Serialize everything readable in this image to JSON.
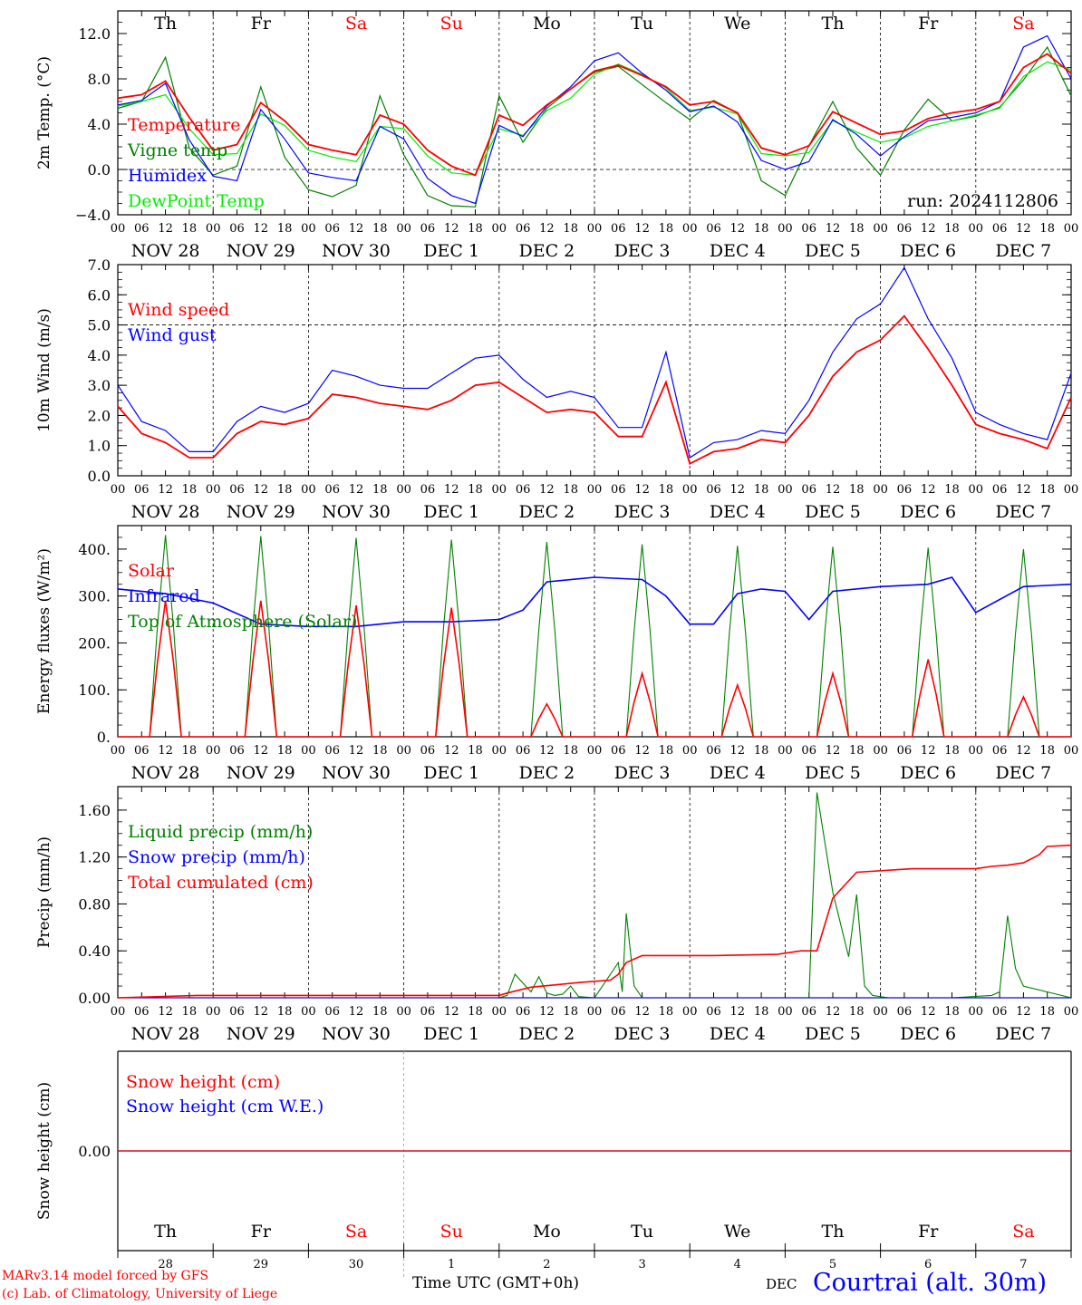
{
  "meta": {
    "run_label": "run: 2024112806",
    "footer_model": "MARv3.14 model forced by GFS",
    "footer_copyright": "(c) Lab. of Climatology, University of Liege",
    "footer_time": "Time UTC (GMT+0h)",
    "footer_month": "DEC",
    "footer_station": "Courtrai (alt. 30m)"
  },
  "colors": {
    "red": "#ff0000",
    "green": "#008000",
    "blue": "#0000ff",
    "light_green": "#00ee00",
    "weekend": "#ff0000",
    "weekday": "#000000"
  },
  "days": {
    "weekday_labels": [
      "Th",
      "Fr",
      "Sa",
      "Su",
      "Mo",
      "Tu",
      "We",
      "Th",
      "Fr",
      "Sa"
    ],
    "weekend_flags": [
      false,
      false,
      true,
      true,
      false,
      false,
      false,
      false,
      false,
      true
    ],
    "date_labels": [
      "NOV 28",
      "NOV 29",
      "NOV 30",
      "DEC  1",
      "DEC  2",
      "DEC  3",
      "DEC  4",
      "DEC  5",
      "DEC  6",
      "DEC  7"
    ],
    "day_numbers": [
      "28",
      "29",
      "30",
      "1",
      "2",
      "3",
      "4",
      "5",
      "6",
      "7"
    ],
    "hour_ticks": [
      "00",
      "06",
      "12",
      "18"
    ],
    "hour_tick_end": "00"
  },
  "chart_data": [
    {
      "type": "line",
      "ylabel": "2m Temp. (°C)",
      "ylim": [
        -4,
        14
      ],
      "yticks": [
        "−4.0",
        "0.0",
        "4.0",
        "8.0",
        "12.0"
      ],
      "ytick_values": [
        -4,
        0,
        4,
        8,
        12
      ],
      "ref_line": 0,
      "x_unit": "hours from 2024-11-28 00 UTC",
      "series": [
        {
          "name": "Temperature",
          "color": "red",
          "x": [
            0,
            6,
            12,
            18,
            24,
            30,
            36,
            42,
            48,
            54,
            60,
            66,
            72,
            78,
            84,
            90,
            96,
            102,
            108,
            114,
            120,
            126,
            132,
            138,
            144,
            150,
            156,
            162,
            168,
            174,
            180,
            186,
            192,
            198,
            204,
            210,
            216,
            222,
            228,
            234,
            240
          ],
          "y": [
            6.3,
            6.6,
            7.8,
            4.6,
            1.7,
            2.2,
            5.9,
            4.3,
            2.2,
            1.7,
            1.3,
            4.8,
            4.0,
            1.7,
            0.3,
            -0.5,
            4.8,
            3.9,
            5.7,
            7.1,
            8.7,
            9.2,
            8.3,
            7.3,
            5.7,
            6.0,
            5.0,
            1.9,
            1.3,
            2.1,
            5.1,
            4.1,
            3.1,
            3.4,
            4.5,
            5.0,
            5.3,
            6.0,
            9.0,
            10.2,
            8.5
          ]
        },
        {
          "name": "Vigne temp",
          "color": "green",
          "x": [
            0,
            6,
            12,
            18,
            24,
            30,
            36,
            42,
            48,
            54,
            60,
            66,
            72,
            78,
            84,
            90,
            96,
            102,
            108,
            114,
            120,
            126,
            132,
            138,
            144,
            150,
            156,
            162,
            168,
            174,
            180,
            186,
            192,
            198,
            204,
            210,
            216,
            222,
            228,
            234,
            240
          ],
          "y": [
            5.4,
            6.0,
            9.9,
            1.9,
            -0.5,
            0.3,
            7.3,
            1.1,
            -1.8,
            -2.4,
            -1.4,
            6.5,
            1.3,
            -2.3,
            -3.2,
            -3.3,
            6.5,
            2.4,
            5.4,
            7.1,
            8.6,
            9.1,
            7.5,
            5.9,
            4.4,
            6.1,
            5.0,
            -1.0,
            -2.3,
            2.1,
            6.0,
            1.9,
            -0.5,
            3.5,
            6.2,
            4.3,
            4.7,
            5.5,
            7.9,
            10.8,
            6.5
          ]
        },
        {
          "name": "Humidex",
          "color": "blue",
          "x": [
            0,
            6,
            12,
            18,
            24,
            30,
            36,
            42,
            48,
            54,
            60,
            66,
            72,
            78,
            84,
            90,
            96,
            102,
            108,
            114,
            120,
            126,
            132,
            138,
            144,
            150,
            156,
            162,
            168,
            174,
            180,
            186,
            192,
            198,
            204,
            210,
            216,
            222,
            228,
            234,
            240
          ],
          "y": [
            5.7,
            6.1,
            7.6,
            2.6,
            -0.6,
            -1.0,
            5.3,
            2.7,
            -0.3,
            -0.7,
            -1.0,
            3.8,
            2.7,
            -0.8,
            -2.3,
            -3.0,
            3.9,
            2.9,
            5.6,
            7.3,
            9.6,
            10.3,
            8.5,
            7.0,
            5.1,
            5.6,
            4.2,
            0.8,
            0.0,
            0.7,
            4.4,
            3.1,
            1.2,
            2.9,
            4.3,
            4.6,
            5.0,
            6.0,
            10.8,
            11.8,
            8.0
          ]
        },
        {
          "name": "DewPoint Temp",
          "color": "light_green",
          "x": [
            0,
            6,
            12,
            18,
            24,
            30,
            36,
            42,
            48,
            54,
            60,
            66,
            72,
            78,
            84,
            90,
            96,
            102,
            108,
            114,
            120,
            126,
            132,
            138,
            144,
            150,
            156,
            162,
            168,
            174,
            180,
            186,
            192,
            198,
            204,
            210,
            216,
            222,
            228,
            234,
            240
          ],
          "y": [
            5.6,
            6.0,
            6.6,
            3.6,
            1.3,
            1.4,
            4.9,
            3.9,
            1.7,
            1.1,
            0.7,
            3.8,
            3.6,
            1.2,
            -0.3,
            -0.5,
            3.6,
            3.0,
            5.2,
            6.3,
            8.4,
            9.3,
            8.4,
            7.2,
            5.2,
            5.5,
            4.9,
            1.4,
            1.2,
            1.5,
            4.3,
            3.3,
            2.4,
            2.8,
            3.8,
            4.3,
            4.8,
            5.4,
            8.2,
            9.5,
            8.8
          ]
        }
      ]
    },
    {
      "type": "line",
      "ylabel": "10m Wind (m/s)",
      "ylim": [
        0,
        7
      ],
      "yticks": [
        "0.0",
        "1.0",
        "2.0",
        "3.0",
        "4.0",
        "5.0",
        "6.0",
        "7.0"
      ],
      "ytick_values": [
        0,
        1,
        2,
        3,
        4,
        5,
        6,
        7
      ],
      "ref_line": 5,
      "x_unit": "hours from 2024-11-28 00 UTC",
      "series": [
        {
          "name": "Wind speed",
          "color": "red",
          "x": [
            0,
            6,
            12,
            18,
            24,
            30,
            36,
            42,
            48,
            54,
            60,
            66,
            72,
            78,
            84,
            90,
            96,
            102,
            108,
            114,
            120,
            126,
            132,
            138,
            144,
            150,
            156,
            162,
            168,
            174,
            180,
            186,
            192,
            198,
            204,
            210,
            216,
            222,
            228,
            234,
            240
          ],
          "y": [
            2.3,
            1.4,
            1.1,
            0.6,
            0.6,
            1.4,
            1.8,
            1.7,
            1.9,
            2.7,
            2.6,
            2.4,
            2.3,
            2.2,
            2.5,
            3.0,
            3.1,
            2.6,
            2.1,
            2.2,
            2.1,
            1.3,
            1.3,
            3.1,
            0.4,
            0.8,
            0.9,
            1.2,
            1.1,
            2.0,
            3.3,
            4.1,
            4.5,
            5.3,
            4.2,
            3.0,
            1.7,
            1.4,
            1.2,
            0.9,
            2.6
          ]
        },
        {
          "name": "Wind gust",
          "color": "blue",
          "x": [
            0,
            6,
            12,
            18,
            24,
            30,
            36,
            42,
            48,
            54,
            60,
            66,
            72,
            78,
            84,
            90,
            96,
            102,
            108,
            114,
            120,
            126,
            132,
            138,
            144,
            150,
            156,
            162,
            168,
            174,
            180,
            186,
            192,
            198,
            204,
            210,
            216,
            222,
            228,
            234,
            240
          ],
          "y": [
            3.0,
            1.8,
            1.5,
            0.8,
            0.8,
            1.8,
            2.3,
            2.1,
            2.4,
            3.5,
            3.3,
            3.0,
            2.9,
            2.9,
            3.4,
            3.9,
            4.0,
            3.2,
            2.6,
            2.8,
            2.6,
            1.6,
            1.6,
            4.1,
            0.6,
            1.1,
            1.2,
            1.5,
            1.4,
            2.5,
            4.1,
            5.2,
            5.7,
            6.9,
            5.2,
            3.9,
            2.1,
            1.7,
            1.4,
            1.2,
            3.4
          ]
        }
      ]
    },
    {
      "type": "line",
      "ylabel": "Energy fluxes (W/m²)",
      "ylim": [
        0,
        450
      ],
      "yticks": [
        "0.",
        "100.",
        "200.",
        "300.",
        "400."
      ],
      "ytick_values": [
        0,
        100,
        200,
        300,
        400
      ],
      "x_unit": "hours from 2024-11-28 00 UTC",
      "series": [
        {
          "name": "Solar",
          "color": "red",
          "daily_peaks": [
            290,
            290,
            280,
            275,
            70,
            135,
            110,
            135,
            165,
            85
          ]
        },
        {
          "name": "Infrared",
          "color": "blue",
          "x": [
            0,
            12,
            24,
            36,
            48,
            60,
            72,
            84,
            96,
            102,
            108,
            120,
            132,
            138,
            144,
            150,
            156,
            162,
            168,
            174,
            180,
            192,
            204,
            210,
            216,
            228,
            240
          ],
          "y": [
            315,
            305,
            285,
            240,
            235,
            235,
            245,
            245,
            250,
            270,
            330,
            340,
            335,
            300,
            240,
            240,
            305,
            315,
            310,
            250,
            310,
            320,
            325,
            340,
            265,
            320,
            325
          ]
        },
        {
          "name": "Top of Atmosphere (Solar)",
          "color": "green",
          "daily_peaks": [
            430,
            428,
            424,
            420,
            415,
            410,
            407,
            405,
            403,
            400
          ]
        }
      ]
    },
    {
      "type": "line",
      "ylabel": "Precip (mm/h)",
      "ylim": [
        0,
        1.8
      ],
      "yticks": [
        "0.00",
        "0.40",
        "0.80",
        "1.20",
        "1.60"
      ],
      "ytick_values": [
        0,
        0.4,
        0.8,
        1.2,
        1.6
      ],
      "x_unit": "hours from 2024-11-28 00 UTC",
      "series": [
        {
          "name": "Liquid precip (mm/h)",
          "color": "green",
          "x": [
            0,
            48,
            96,
            98,
            100,
            104,
            106,
            108,
            110,
            112,
            114,
            116,
            120,
            126,
            127,
            128,
            130,
            132,
            134,
            150,
            156,
            174,
            176,
            180,
            184,
            186,
            188,
            190,
            194,
            210,
            220,
            222,
            224,
            226,
            228,
            240
          ],
          "y": [
            0,
            0,
            0,
            0.02,
            0.2,
            0.05,
            0.18,
            0.04,
            0.02,
            0.03,
            0.1,
            0.01,
            0,
            0.3,
            0.05,
            0.72,
            0.1,
            0,
            0,
            0,
            0,
            0,
            1.75,
            0.9,
            0.35,
            0.88,
            0.1,
            0.02,
            0,
            0,
            0.02,
            0.05,
            0.7,
            0.25,
            0.1,
            0
          ]
        },
        {
          "name": "Snow precip (mm/h)",
          "color": "blue",
          "x": [
            0,
            240
          ],
          "y": [
            0,
            0
          ]
        },
        {
          "name": "Total cumulated (cm)",
          "color": "red",
          "x": [
            0,
            20,
            96,
            98,
            104,
            110,
            116,
            124,
            126,
            128,
            132,
            150,
            166,
            168,
            172,
            176,
            180,
            186,
            200,
            216,
            220,
            224,
            228,
            232,
            234,
            240
          ],
          "y": [
            0,
            0.02,
            0.02,
            0.04,
            0.09,
            0.11,
            0.13,
            0.15,
            0.2,
            0.3,
            0.36,
            0.36,
            0.37,
            0.38,
            0.4,
            0.4,
            0.85,
            1.07,
            1.1,
            1.1,
            1.12,
            1.13,
            1.15,
            1.22,
            1.29,
            1.3
          ]
        }
      ]
    },
    {
      "type": "line",
      "ylabel": "Snow height (cm)",
      "yticks": [
        "0.00"
      ],
      "ytick_values": [
        0
      ],
      "x_unit": "hours from 2024-11-28 00 UTC",
      "series": [
        {
          "name": "Snow height (cm)",
          "color": "red",
          "x": [
            0,
            240
          ],
          "y": [
            0,
            0
          ]
        },
        {
          "name": "Snow height (cm W.E.)",
          "color": "blue",
          "x": [
            0,
            240
          ],
          "y": [
            0,
            0
          ]
        }
      ]
    }
  ]
}
